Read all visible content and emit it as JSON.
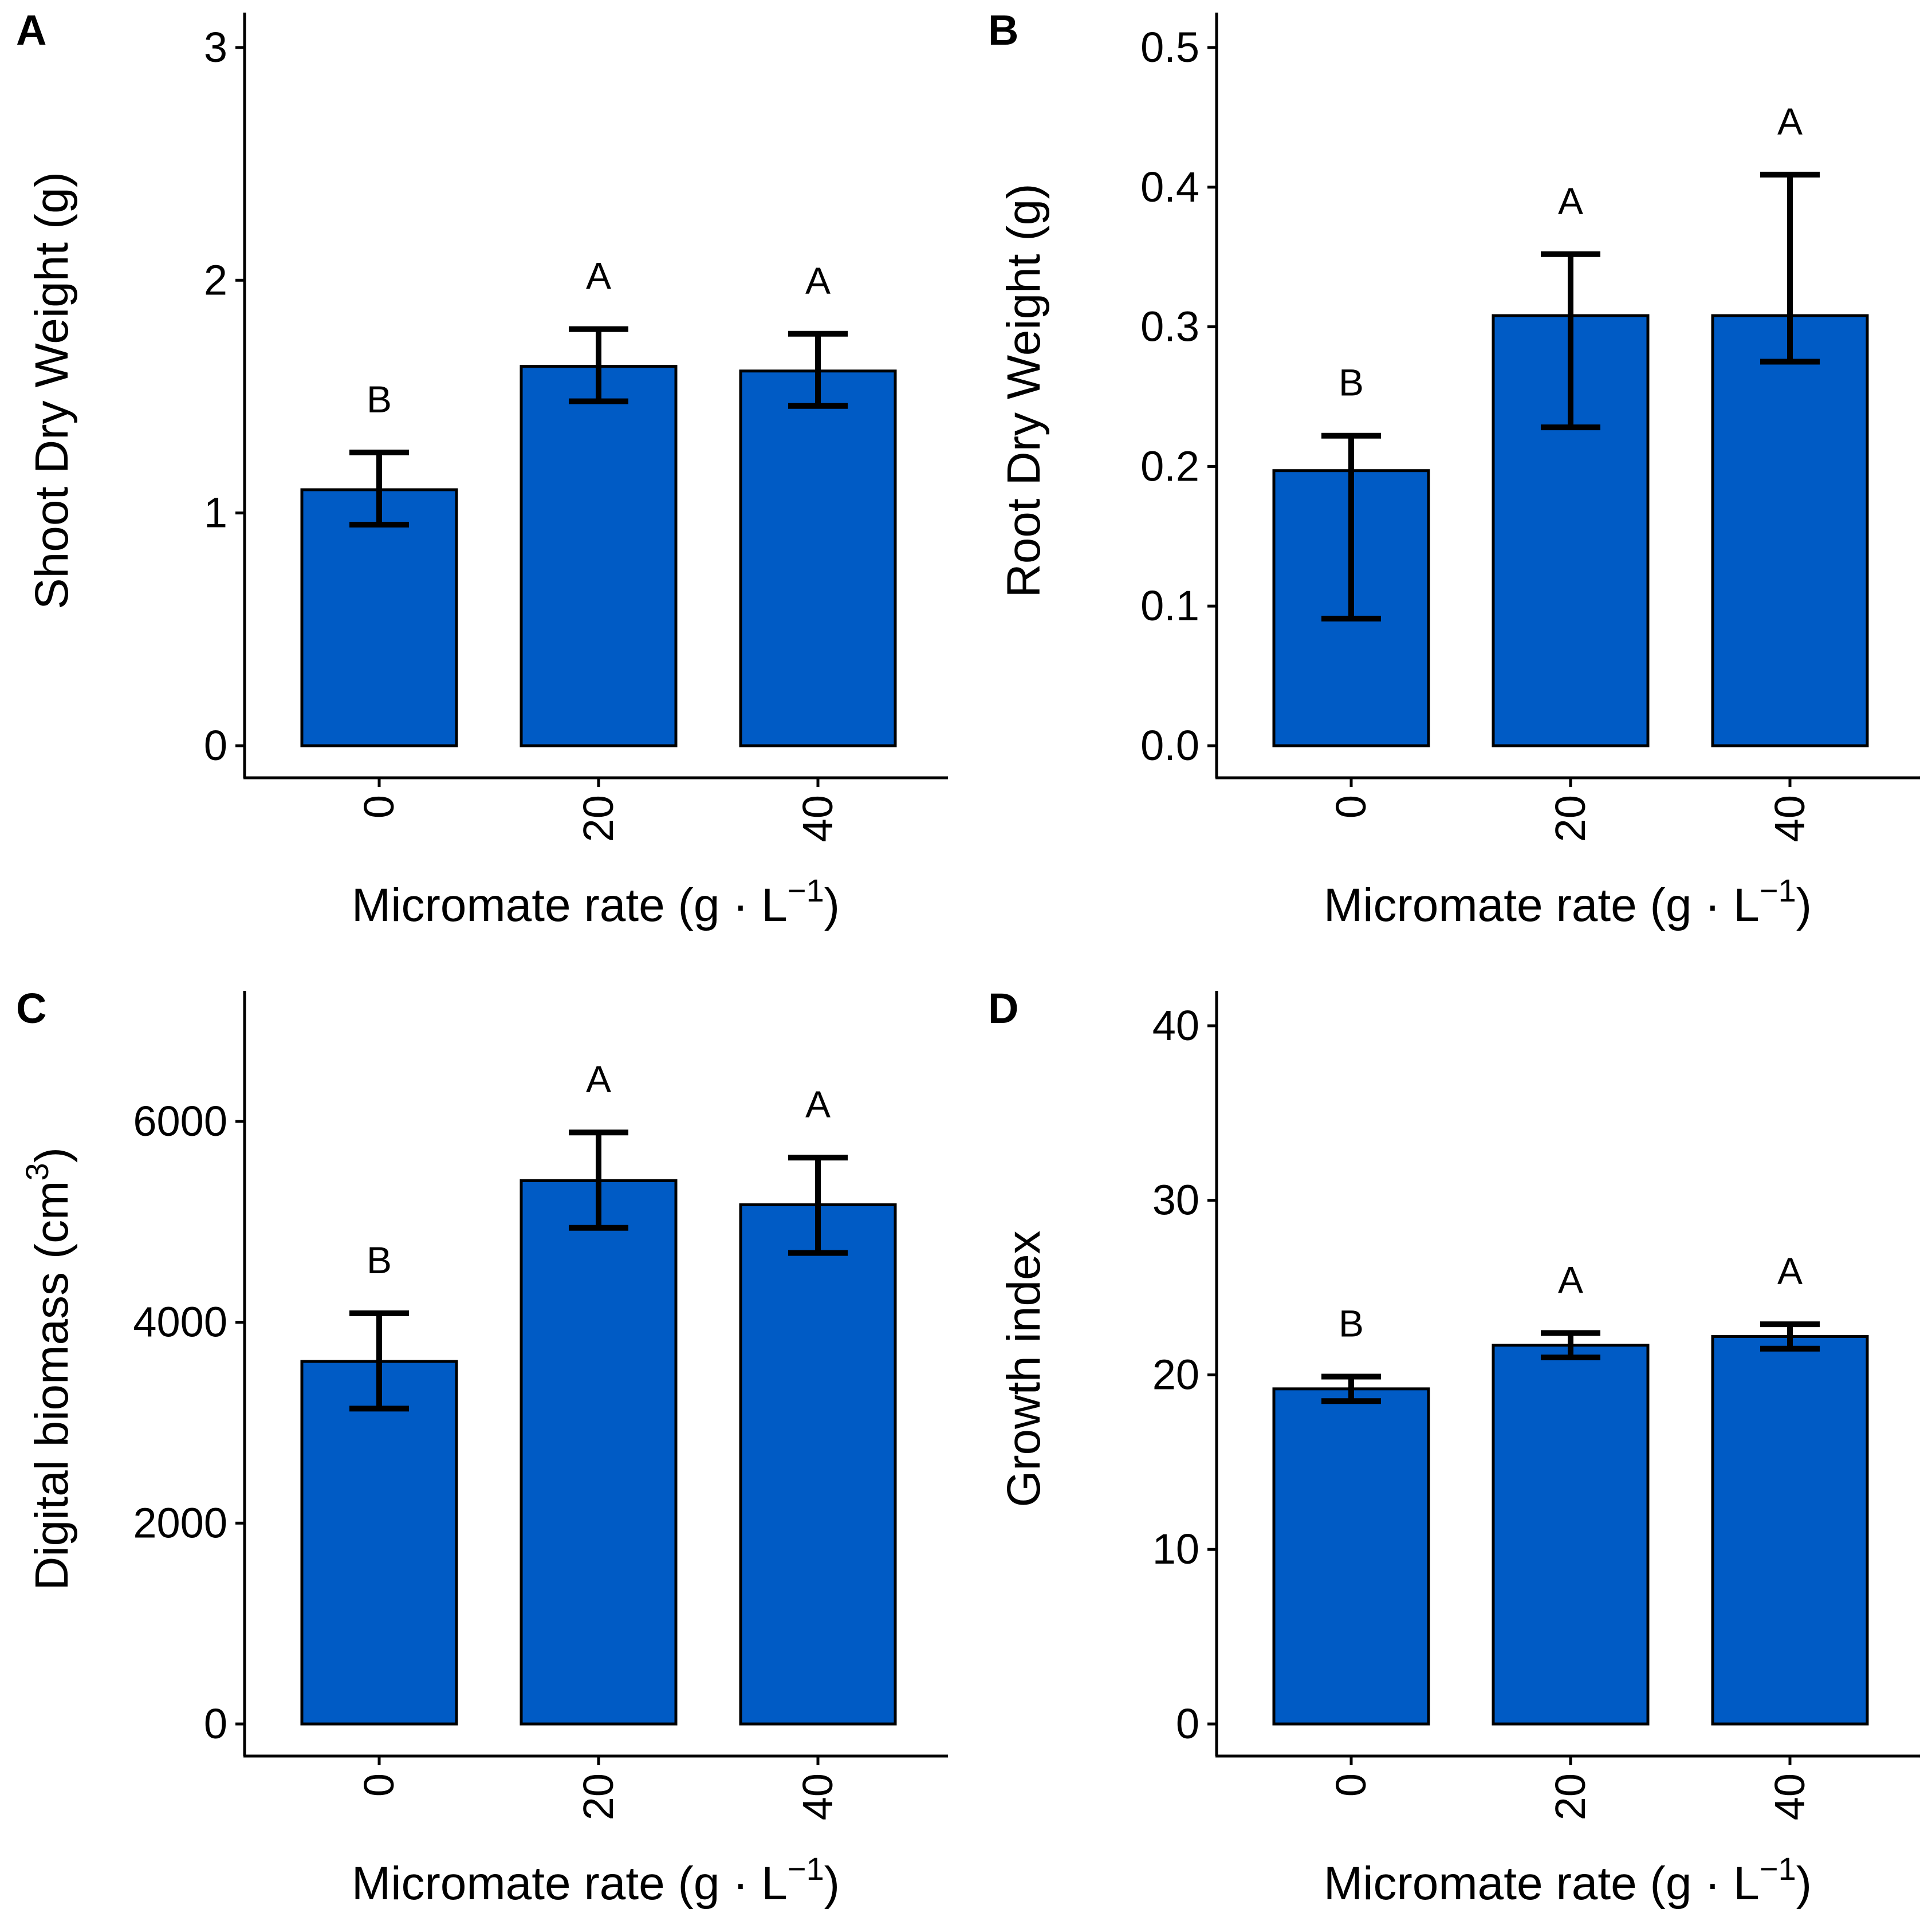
{
  "chart_data": [
    {
      "panel": "A",
      "type": "bar",
      "categories": [
        "0",
        "20",
        "40"
      ],
      "values": [
        1.1,
        1.63,
        1.61
      ],
      "error_low": [
        0.95,
        1.48,
        1.46
      ],
      "error_high": [
        1.26,
        1.79,
        1.77
      ],
      "letters": [
        "B",
        "A",
        "A"
      ],
      "xlabel": "Micromate rate (g · L",
      "xlabel_sup": "−1",
      "xlabel_close": ")",
      "ylabel": "Shoot Dry Weight (g)",
      "ylabel_sup": "",
      "ylabel_close": "",
      "ylim": [
        0,
        3.15
      ],
      "yticks": [
        0,
        1,
        2,
        3
      ],
      "ytick_labels": [
        "0",
        "1",
        "2",
        "3"
      ]
    },
    {
      "panel": "B",
      "type": "bar",
      "categories": [
        "0",
        "20",
        "40"
      ],
      "values": [
        0.197,
        0.308,
        0.308
      ],
      "error_low": [
        0.091,
        0.228,
        0.275
      ],
      "error_high": [
        0.222,
        0.352,
        0.409
      ],
      "letters": [
        "B",
        "A",
        "A"
      ],
      "xlabel": "Micromate rate (g · L",
      "xlabel_sup": "−1",
      "xlabel_close": ")",
      "ylabel": "Root Dry Weight (g)",
      "ylabel_sup": "",
      "ylabel_close": "",
      "ylim": [
        0,
        0.525
      ],
      "yticks": [
        0,
        0.1,
        0.2,
        0.3,
        0.4,
        0.5
      ],
      "ytick_labels": [
        "0.0",
        "0.1",
        "0.2",
        "0.3",
        "0.4",
        "0.5"
      ]
    },
    {
      "panel": "C",
      "type": "bar",
      "categories": [
        "0",
        "20",
        "40"
      ],
      "values": [
        3610,
        5410,
        5170
      ],
      "error_low": [
        3140,
        4940,
        4690
      ],
      "error_high": [
        4090,
        5890,
        5640
      ],
      "letters": [
        "B",
        "A",
        "A"
      ],
      "xlabel": "Micromate rate (g · L",
      "xlabel_sup": "−1",
      "xlabel_close": ")",
      "ylabel": "Digital biomass (cm",
      "ylabel_sup": "3",
      "ylabel_close": ")",
      "ylim": [
        0,
        7300
      ],
      "yticks": [
        0,
        2000,
        4000,
        6000
      ],
      "ytick_labels": [
        "0",
        "2000",
        "4000",
        "6000"
      ]
    },
    {
      "panel": "D",
      "type": "bar",
      "categories": [
        "0",
        "20",
        "40"
      ],
      "values": [
        19.2,
        21.7,
        22.2
      ],
      "error_low": [
        18.5,
        21.0,
        21.5
      ],
      "error_high": [
        19.9,
        22.4,
        22.9
      ],
      "letters": [
        "B",
        "A",
        "A"
      ],
      "xlabel": "Micromate rate (g · L",
      "xlabel_sup": "−1",
      "xlabel_close": ")",
      "ylabel": "Growth index",
      "ylabel_sup": "",
      "ylabel_close": "",
      "ylim": [
        0,
        42
      ],
      "yticks": [
        0,
        10,
        20,
        30,
        40
      ],
      "ytick_labels": [
        "0",
        "10",
        "20",
        "30",
        "40"
      ]
    }
  ],
  "colors": {
    "bar_fill": "#005BC5",
    "bar_edge": "#000000",
    "axis": "#000000"
  }
}
